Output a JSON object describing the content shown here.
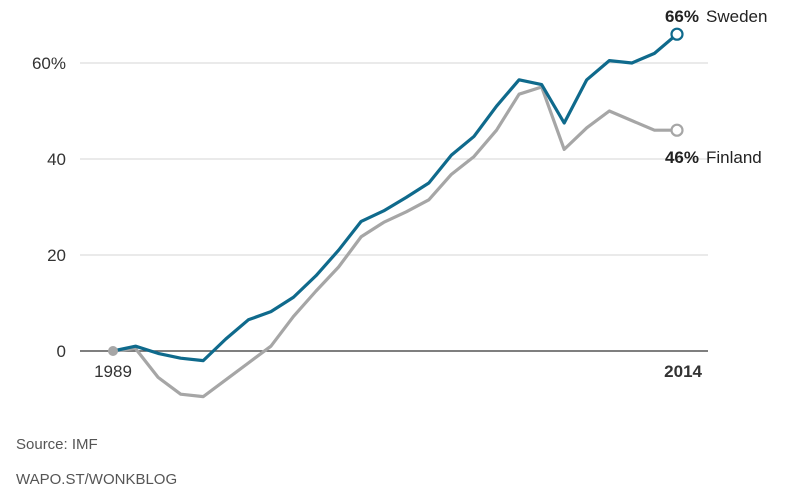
{
  "chart_data": {
    "type": "line",
    "x": [
      1989,
      1990,
      1991,
      1992,
      1993,
      1994,
      1995,
      1996,
      1997,
      1998,
      1999,
      2000,
      2001,
      2002,
      2003,
      2004,
      2005,
      2006,
      2007,
      2008,
      2009,
      2010,
      2011,
      2012,
      2013,
      2014
    ],
    "series": [
      {
        "name": "Sweden",
        "color": "#0f6a8c",
        "values": [
          0,
          1,
          -0.5,
          -1.5,
          -2,
          2.5,
          6.5,
          8.2,
          11.2,
          15.7,
          21,
          27,
          29.2,
          32,
          35,
          40.8,
          44.7,
          51,
          56.5,
          55.5,
          47.5,
          56.5,
          60.5,
          60,
          62,
          66
        ],
        "end_label_pct": "66%"
      },
      {
        "name": "Finland",
        "color": "#a6a6a6",
        "values": [
          0,
          0.5,
          -5.5,
          -9,
          -9.5,
          -6,
          -2.5,
          1,
          7.2,
          12.5,
          17.5,
          23.8,
          26.8,
          29,
          31.5,
          36.8,
          40.5,
          46,
          53.5,
          55,
          42,
          46.5,
          50,
          48,
          46,
          46
        ],
        "end_label_pct": "46%"
      }
    ],
    "y_ticks": [
      "0",
      "20",
      "40",
      "60%"
    ],
    "y_tick_values": [
      0,
      20,
      40,
      60
    ],
    "x_tick_labels": [
      "1989",
      "2014"
    ],
    "ylim": [
      -12,
      68
    ],
    "grid": true
  },
  "footer": {
    "source": "Source: IMF",
    "credit": "WAPO.ST/WONKBLOG"
  }
}
